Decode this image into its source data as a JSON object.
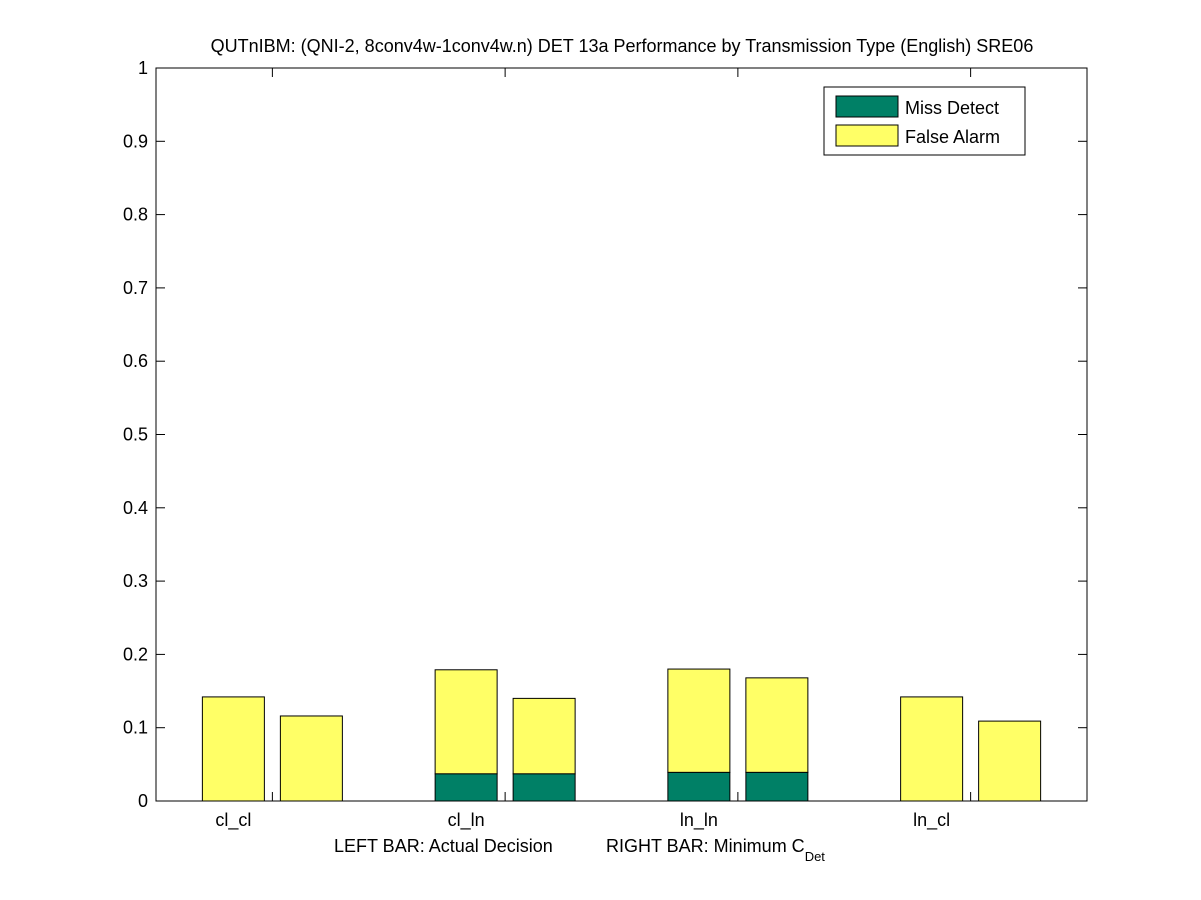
{
  "chart_data": {
    "type": "bar",
    "stacked": true,
    "title": "QUTnIBM: (QNI-2, 8conv4w-1conv4w.n) DET 13a Performance by Transmission Type (English) SRE06",
    "categories": [
      "cl_cl",
      "cl_ln",
      "ln_ln",
      "ln_cl"
    ],
    "xlabel": {
      "left": "LEFT BAR: Actual Decision",
      "right_main": "RIGHT BAR: Minimum C",
      "right_sub": "Det"
    },
    "ylim": [
      0,
      1
    ],
    "yticks": [
      0,
      0.1,
      0.2,
      0.3,
      0.4,
      0.5,
      0.6,
      0.7,
      0.8,
      0.9,
      1
    ],
    "ytick_labels": [
      "0",
      "0.1",
      "0.2",
      "0.3",
      "0.4",
      "0.5",
      "0.6",
      "0.7",
      "0.8",
      "0.9",
      "1"
    ],
    "grid": false,
    "legend_position": "top-right",
    "colors": {
      "miss": "#008066",
      "fa": "#ffff66"
    },
    "series": [
      {
        "name": "Miss Detect",
        "left": [
          0.0,
          0.037,
          0.039,
          0.0
        ],
        "right": [
          0.0,
          0.037,
          0.039,
          0.0
        ]
      },
      {
        "name": "False Alarm",
        "left": [
          0.142,
          0.142,
          0.141,
          0.142
        ],
        "right": [
          0.116,
          0.103,
          0.129,
          0.109
        ]
      }
    ]
  }
}
